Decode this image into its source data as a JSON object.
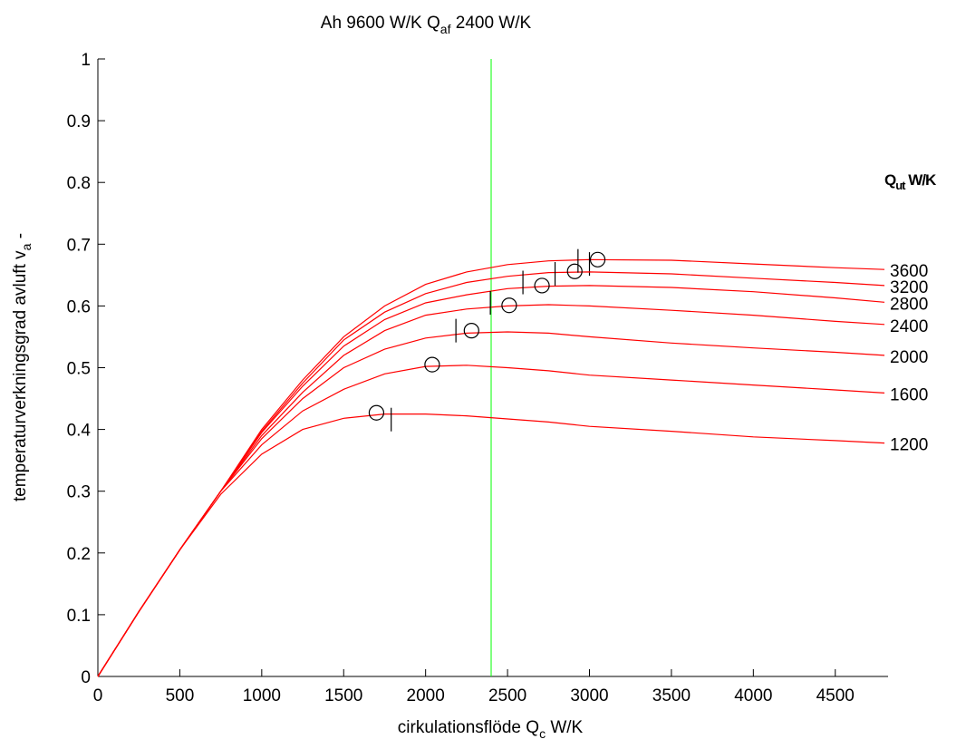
{
  "chart_data": {
    "type": "line",
    "title": [
      "Ah 9600 W/K   Q",
      "af",
      " 2400 W/K"
    ],
    "x_label": [
      "cirkulationsflöde  Q",
      "c",
      " W/K"
    ],
    "y_label": [
      "temperaturverkningsgrad avluft  v",
      "a",
      " -"
    ],
    "legend_title": [
      "Q",
      "ut",
      " W/K"
    ],
    "x": [
      0,
      250,
      500,
      750,
      1000,
      1250,
      1500,
      1750,
      2000,
      2250,
      2500,
      2750,
      3000,
      3500,
      4000,
      4500,
      4800
    ],
    "series": [
      {
        "name": "3600",
        "color": "#ff0000",
        "values": [
          0,
          0.105,
          0.205,
          0.3,
          0.4,
          0.48,
          0.55,
          0.6,
          0.635,
          0.655,
          0.667,
          0.673,
          0.675,
          0.674,
          0.668,
          0.662,
          0.659
        ],
        "circle": {
          "x": 3050,
          "y": 0.675
        },
        "tick": {
          "x": 3000,
          "y": 0.668
        }
      },
      {
        "name": "3200",
        "color": "#ff0000",
        "values": [
          0,
          0.105,
          0.205,
          0.3,
          0.397,
          0.475,
          0.545,
          0.59,
          0.62,
          0.638,
          0.648,
          0.654,
          0.655,
          0.652,
          0.645,
          0.638,
          0.633
        ],
        "circle": {
          "x": 2910,
          "y": 0.656
        },
        "tick": {
          "x": 2930,
          "y": 0.673
        }
      },
      {
        "name": "2800",
        "color": "#ff0000",
        "values": [
          0,
          0.105,
          0.205,
          0.3,
          0.395,
          0.47,
          0.535,
          0.578,
          0.605,
          0.618,
          0.628,
          0.632,
          0.633,
          0.63,
          0.623,
          0.613,
          0.606
        ],
        "circle": {
          "x": 2710,
          "y": 0.633
        },
        "tick": {
          "x": 2790,
          "y": 0.652
        }
      },
      {
        "name": "2400",
        "color": "#ff0000",
        "values": [
          0,
          0.105,
          0.205,
          0.3,
          0.39,
          0.46,
          0.52,
          0.56,
          0.585,
          0.595,
          0.6,
          0.602,
          0.6,
          0.593,
          0.585,
          0.575,
          0.57
        ],
        "circle": {
          "x": 2510,
          "y": 0.601
        },
        "tick": {
          "x": 2594,
          "y": 0.638
        }
      },
      {
        "name": "2000",
        "color": "#ff0000",
        "values": [
          0,
          0.105,
          0.205,
          0.3,
          0.385,
          0.45,
          0.5,
          0.53,
          0.548,
          0.556,
          0.558,
          0.556,
          0.55,
          0.54,
          0.532,
          0.525,
          0.52
        ],
        "circle": {
          "x": 2280,
          "y": 0.56
        },
        "tick": {
          "x": 2395,
          "y": 0.605
        }
      },
      {
        "name": "1600",
        "color": "#ff0000",
        "values": [
          0,
          0.105,
          0.205,
          0.3,
          0.375,
          0.43,
          0.465,
          0.49,
          0.502,
          0.504,
          0.5,
          0.495,
          0.488,
          0.48,
          0.472,
          0.464,
          0.459
        ],
        "circle": {
          "x": 2040,
          "y": 0.505
        },
        "tick": {
          "x": 2185,
          "y": 0.56
        }
      },
      {
        "name": "1200",
        "color": "#ff0000",
        "values": [
          0,
          0.105,
          0.205,
          0.295,
          0.36,
          0.4,
          0.418,
          0.425,
          0.425,
          0.422,
          0.417,
          0.412,
          0.405,
          0.397,
          0.388,
          0.382,
          0.378
        ],
        "circle": {
          "x": 1700,
          "y": 0.427
        },
        "tick": {
          "x": 1790,
          "y": 0.416
        }
      }
    ],
    "vline": {
      "x": 2400,
      "color": "#00ff00"
    },
    "marker_color": "#000000",
    "xlim": [
      0,
      4800
    ],
    "ylim": [
      0,
      1
    ],
    "xticks": [
      0,
      500,
      1000,
      1500,
      2000,
      2500,
      3000,
      3500,
      4000,
      4500
    ],
    "yticks": [
      0,
      0.1,
      0.2,
      0.3,
      0.4,
      0.5,
      0.6,
      0.7,
      0.8,
      0.9,
      1
    ],
    "grid": false
  }
}
